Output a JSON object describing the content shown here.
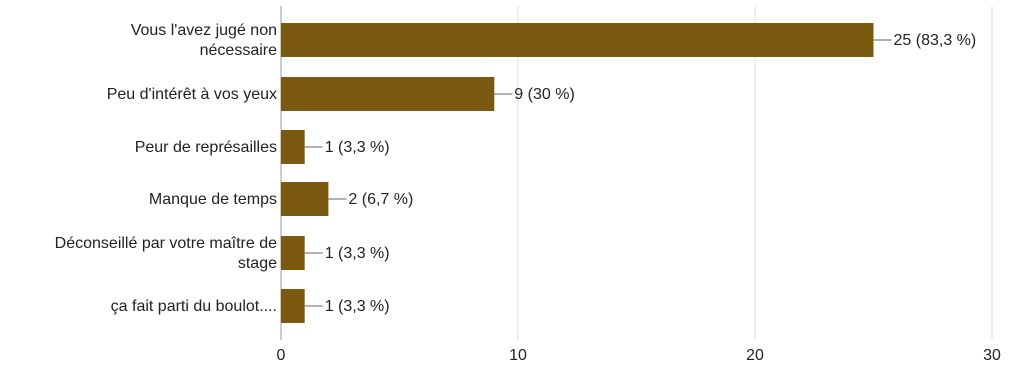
{
  "chart_data": {
    "type": "bar",
    "orientation": "horizontal",
    "categories": [
      [
        "Vous l'avez jugé non",
        "nécessaire"
      ],
      [
        "Peu d'intérêt à vos yeux"
      ],
      [
        "Peur de représailles"
      ],
      [
        "Manque de temps"
      ],
      [
        "Déconseillé par votre maître de",
        "stage"
      ],
      [
        "ça fait parti du boulot...."
      ]
    ],
    "values": [
      25,
      9,
      1,
      2,
      1,
      1
    ],
    "data_labels": [
      "25 (83,3 %)",
      "9 (30 %)",
      "1 (3,3 %)",
      "2 (6,7 %)",
      "1 (3,3 %)",
      "1 (3,3 %)"
    ],
    "xlim": [
      0,
      30
    ],
    "x_ticks": [
      0,
      10,
      20,
      30
    ],
    "x_tick_labels": [
      "0",
      "10",
      "20",
      "30"
    ],
    "grid": true,
    "legend": "none",
    "bar_color": "#7a5a10",
    "grid_color": "#dddddd",
    "title": "",
    "xlabel": "",
    "ylabel": ""
  }
}
